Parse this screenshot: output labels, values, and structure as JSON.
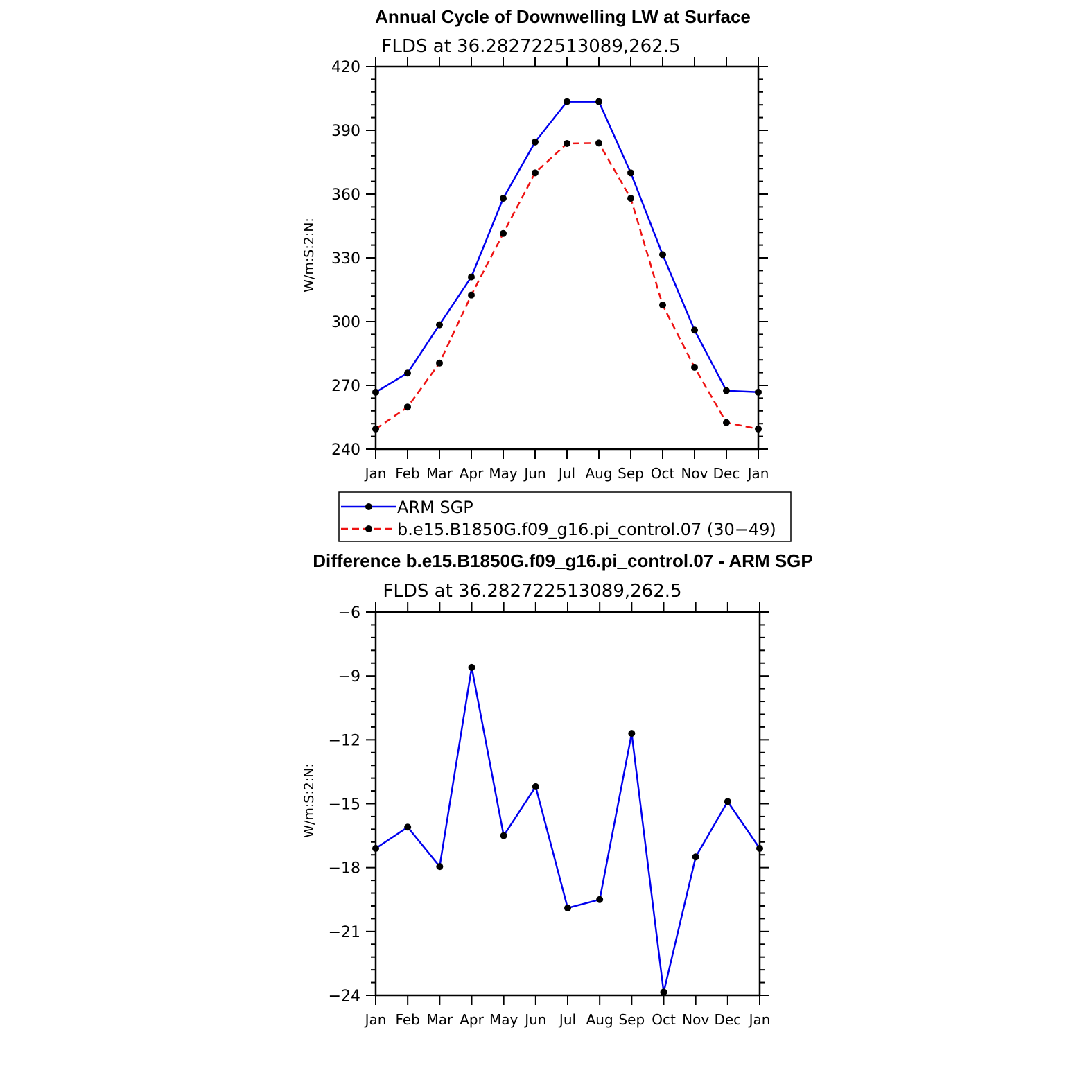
{
  "chart_data": [
    {
      "type": "line",
      "title": "Annual Cycle of Downwelling LW at Surface",
      "subtitle": "FLDS at 36.282722513089,262.5",
      "ylabel": "W/m:S:2:N:",
      "xlabel": "",
      "categories": [
        "Jan",
        "Feb",
        "Mar",
        "Apr",
        "May",
        "Jun",
        "Jul",
        "Aug",
        "Sep",
        "Oct",
        "Nov",
        "Dec",
        "Jan"
      ],
      "ylim": [
        240,
        420
      ],
      "yticks": [
        240,
        270,
        300,
        330,
        360,
        390,
        420
      ],
      "ytick_labels": [
        "240",
        "270",
        "300",
        "330",
        "360",
        "390",
        "420"
      ],
      "series": [
        {
          "name": "ARM SGP",
          "color": "#0000ee",
          "dash": "solid",
          "values": [
            266.8,
            275.8,
            298.5,
            321.0,
            358.0,
            384.5,
            403.5,
            403.5,
            370.0,
            331.5,
            296.0,
            267.5,
            266.8
          ]
        },
        {
          "name": "b.e15.B1850G.f09_g16.pi_control.07 (30−49)",
          "color": "#ee1111",
          "dash": "dashed",
          "values": [
            249.5,
            259.8,
            280.5,
            312.5,
            341.5,
            370.0,
            383.8,
            384.0,
            358.0,
            307.8,
            278.5,
            252.5,
            249.5
          ]
        }
      ],
      "legend_position": "bottom"
    },
    {
      "type": "line",
      "title": "Difference b.e15.B1850G.f09_g16.pi_control.07 - ARM SGP",
      "subtitle": "FLDS at 36.282722513089,262.5",
      "ylabel": "W/m:S:2:N:",
      "xlabel": "",
      "categories": [
        "Jan",
        "Feb",
        "Mar",
        "Apr",
        "May",
        "Jun",
        "Jul",
        "Aug",
        "Sep",
        "Oct",
        "Nov",
        "Dec",
        "Jan"
      ],
      "ylim": [
        -24,
        -6
      ],
      "yticks": [
        -24,
        -21,
        -18,
        -15,
        -12,
        -9,
        -6
      ],
      "ytick_labels": [
        "−24",
        "−21",
        "−18",
        "−15",
        "−12",
        "−9",
        "−6"
      ],
      "series": [
        {
          "color": "#0000ee",
          "dash": "solid",
          "values": [
            -17.1,
            -16.1,
            -17.95,
            -8.6,
            -16.5,
            -14.2,
            -19.9,
            -19.5,
            -11.7,
            -23.85,
            -17.5,
            -14.9,
            -17.1
          ]
        }
      ]
    }
  ]
}
